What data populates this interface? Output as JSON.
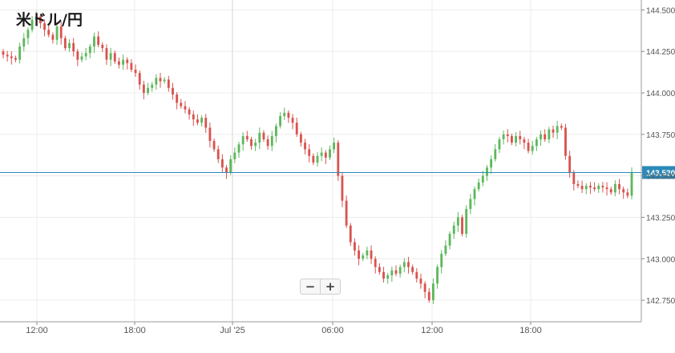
{
  "title": "米ドル/円",
  "zoom": {
    "out_label": "−",
    "in_label": "+"
  },
  "colors": {
    "up": "#5cb85c",
    "down": "#d9534f",
    "price_line": "#2b8ab8",
    "grid": "#ececec"
  },
  "chart_data": {
    "type": "candlestick",
    "title": "米ドル/円",
    "y_ticks": [
      "142.750",
      "143.000",
      "143.250",
      "143.500",
      "143.750",
      "144.000",
      "144.250",
      "144.500"
    ],
    "ylim": [
      142.62,
      144.56
    ],
    "x_ticks": [
      "12:00",
      "18:00",
      "Jul '25",
      "06:00",
      "12:00",
      "18:00"
    ],
    "current_price": 143.52,
    "current_price_label": "143.520",
    "grid": true,
    "close_series": [
      144.23,
      144.22,
      144.21,
      144.2,
      144.28,
      144.33,
      144.38,
      144.44,
      144.46,
      144.42,
      144.38,
      144.35,
      144.32,
      144.4,
      144.33,
      144.27,
      144.3,
      144.25,
      144.2,
      144.22,
      144.24,
      144.28,
      144.34,
      144.29,
      144.27,
      144.2,
      144.24,
      144.19,
      144.17,
      144.2,
      144.18,
      144.14,
      144.12,
      144.05,
      144.0,
      144.03,
      144.05,
      144.09,
      144.07,
      144.08,
      144.03,
      143.99,
      143.94,
      143.92,
      143.9,
      143.87,
      143.84,
      143.82,
      143.85,
      143.79,
      143.71,
      143.66,
      143.6,
      143.55,
      143.52,
      143.6,
      143.64,
      143.69,
      143.74,
      143.72,
      143.68,
      143.7,
      143.76,
      143.72,
      143.68,
      143.74,
      143.8,
      143.86,
      143.88,
      143.85,
      143.82,
      143.75,
      143.7,
      143.66,
      143.62,
      143.58,
      143.62,
      143.64,
      143.61,
      143.66,
      143.7,
      143.5,
      143.35,
      143.2,
      143.1,
      143.05,
      143.0,
      143.02,
      143.05,
      143.0,
      142.95,
      142.92,
      142.88,
      142.9,
      142.93,
      142.91,
      142.95,
      142.98,
      142.95,
      142.92,
      142.88,
      142.85,
      142.8,
      142.75,
      142.85,
      142.95,
      143.03,
      143.08,
      143.15,
      143.2,
      143.25,
      143.15,
      143.3,
      143.36,
      143.42,
      143.46,
      143.5,
      143.55,
      143.6,
      143.66,
      143.72,
      143.75,
      143.74,
      143.7,
      143.74,
      143.72,
      143.7,
      143.65,
      143.68,
      143.72,
      143.75,
      143.72,
      143.78,
      143.76,
      143.8,
      143.79,
      143.62,
      143.52,
      143.45,
      143.44,
      143.42,
      143.44,
      143.43,
      143.42,
      143.44,
      143.43,
      143.42,
      143.4,
      143.45,
      143.42,
      143.4,
      143.38,
      143.52
    ]
  }
}
